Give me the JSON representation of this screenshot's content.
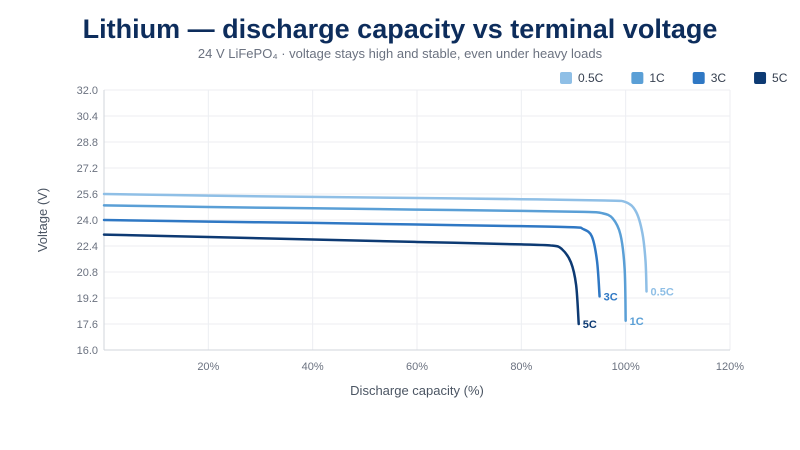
{
  "chart_data": {
    "type": "line",
    "title": "Lithium — discharge capacity vs terminal voltage",
    "subtitle": "24 V LiFePO₄ · voltage stays high and stable, even under heavy loads",
    "xlabel": "Discharge capacity (%)",
    "ylabel": "Voltage (V)",
    "xlim": [
      0,
      120
    ],
    "ylim": [
      16.0,
      32.0
    ],
    "x_ticks": [
      20,
      40,
      60,
      80,
      100,
      120
    ],
    "x_tick_labels": [
      "20%",
      "40%",
      "60%",
      "80%",
      "100%",
      "120%"
    ],
    "y_ticks": [
      16.0,
      17.6,
      19.2,
      20.8,
      22.4,
      24.0,
      25.6,
      27.2,
      28.8,
      30.4,
      32.0
    ],
    "y_tick_labels": [
      "16.0",
      "17.6",
      "19.2",
      "20.8",
      "22.4",
      "24.0",
      "25.6",
      "27.2",
      "28.8",
      "30.4",
      "32.0"
    ],
    "grid": true,
    "legend_position": "top-right",
    "series": [
      {
        "name": "0.5C",
        "color": "#8fbfe6",
        "end_label": "0.5C",
        "points": [
          [
            0,
            25.6
          ],
          [
            20,
            25.5
          ],
          [
            40,
            25.42
          ],
          [
            60,
            25.35
          ],
          [
            80,
            25.28
          ],
          [
            96,
            25.2
          ],
          [
            100,
            25.1
          ],
          [
            102,
            24.5
          ],
          [
            103.2,
            23.2
          ],
          [
            103.8,
            21.5
          ],
          [
            104,
            19.6
          ]
        ]
      },
      {
        "name": "1C",
        "color": "#5a9fd6",
        "end_label": "1C",
        "points": [
          [
            0,
            24.9
          ],
          [
            20,
            24.8
          ],
          [
            40,
            24.72
          ],
          [
            60,
            24.64
          ],
          [
            80,
            24.56
          ],
          [
            92,
            24.5
          ],
          [
            95.5,
            24.42
          ],
          [
            97.5,
            24.1
          ],
          [
            99,
            23.1
          ],
          [
            99.8,
            21.0
          ],
          [
            100,
            17.8
          ]
        ]
      },
      {
        "name": "3C",
        "color": "#2f78c4",
        "end_label": "3C",
        "points": [
          [
            0,
            24.0
          ],
          [
            20,
            23.9
          ],
          [
            40,
            23.82
          ],
          [
            60,
            23.72
          ],
          [
            80,
            23.62
          ],
          [
            90,
            23.55
          ],
          [
            91.8,
            23.45
          ],
          [
            93.5,
            23.0
          ],
          [
            94.5,
            21.5
          ],
          [
            95,
            19.3
          ]
        ]
      },
      {
        "name": "5C",
        "color": "#0d3a73",
        "end_label": "5C",
        "points": [
          [
            0,
            23.1
          ],
          [
            20,
            22.95
          ],
          [
            40,
            22.8
          ],
          [
            60,
            22.65
          ],
          [
            80,
            22.5
          ],
          [
            86,
            22.42
          ],
          [
            87.8,
            22.2
          ],
          [
            89.5,
            21.4
          ],
          [
            90.5,
            20.0
          ],
          [
            91,
            17.6
          ]
        ]
      }
    ]
  }
}
